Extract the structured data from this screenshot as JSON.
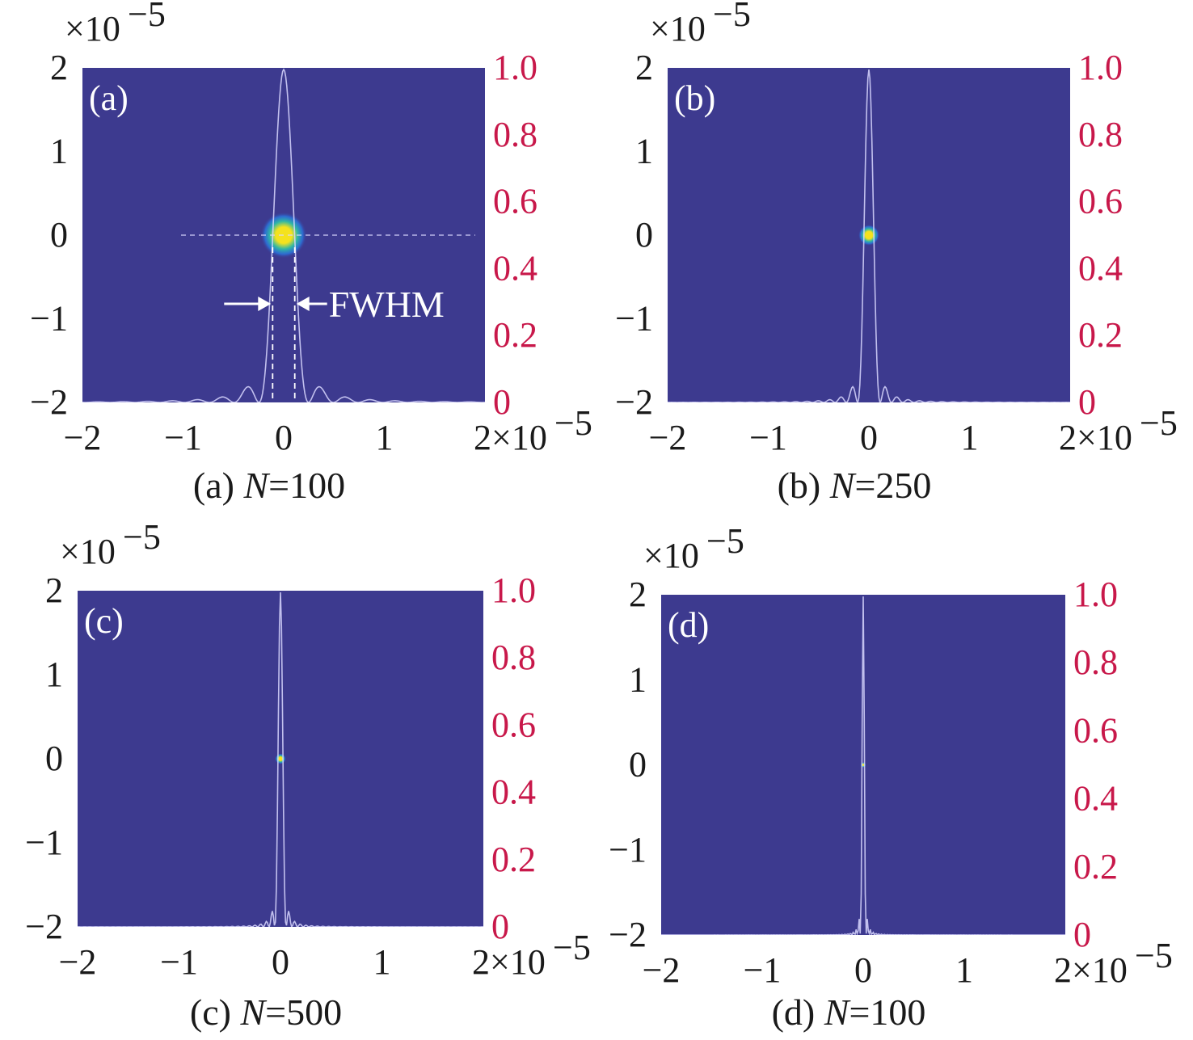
{
  "colors": {
    "background": "#3d3a8f",
    "profile_line": "#d9d8ff",
    "right_axis": "#c8184a",
    "spot_core": "#f4e21e",
    "spot_mid": "#2fb7a6",
    "spot_outer": "#2c6fd8"
  },
  "chart_data": [
    {
      "type": "heatmap",
      "panel_label": "(a)",
      "caption_prefix": "(a) ",
      "caption_var": "N",
      "caption_value": "=100",
      "N": 100,
      "x_ticks": [
        "−2",
        "−1",
        "0",
        "1",
        "2"
      ],
      "y_ticks": [
        "−2",
        "−1",
        "0",
        "1",
        "2"
      ],
      "x_exponent": "×10",
      "x_exponent_power": "−5",
      "y_exponent": "×10",
      "y_exponent_power": "−5",
      "xlim": [
        -2e-05,
        2e-05
      ],
      "ylim": [
        -2e-05,
        2e-05
      ],
      "right_ticks": [
        "0",
        "0.2",
        "0.4",
        "0.6",
        "0.8",
        "1.0"
      ],
      "right_lim": [
        0,
        1.0
      ],
      "spot_center": [
        0,
        0
      ],
      "fwhm": 2.2e-06,
      "show_crosshair": true,
      "annotation": "FWHM"
    },
    {
      "type": "heatmap",
      "panel_label": "(b)",
      "caption_prefix": "(b) ",
      "caption_var": "N",
      "caption_value": "=250",
      "N": 250,
      "x_ticks": [
        "−2",
        "−1",
        "0",
        "1",
        "2"
      ],
      "y_ticks": [
        "−2",
        "−1",
        "0",
        "1",
        "2"
      ],
      "x_exponent": "×10",
      "x_exponent_power": "−5",
      "y_exponent": "×10",
      "y_exponent_power": "−5",
      "xlim": [
        -2e-05,
        2e-05
      ],
      "ylim": [
        -2e-05,
        2e-05
      ],
      "right_ticks": [
        "0",
        "0.2",
        "0.4",
        "0.6",
        "0.8",
        "1.0"
      ],
      "right_lim": [
        0,
        1.0
      ],
      "spot_center": [
        0,
        0
      ],
      "fwhm": 1e-06,
      "show_crosshair": false,
      "annotation": ""
    },
    {
      "type": "heatmap",
      "panel_label": "(c)",
      "caption_prefix": "(c) ",
      "caption_var": "N",
      "caption_value": "=500",
      "N": 500,
      "x_ticks": [
        "−2",
        "−1",
        "0",
        "1",
        "2"
      ],
      "y_ticks": [
        "−2",
        "−1",
        "0",
        "1",
        "2"
      ],
      "x_exponent": "×10",
      "x_exponent_power": "−5",
      "y_exponent": "×10",
      "y_exponent_power": "−5",
      "xlim": [
        -2e-05,
        2e-05
      ],
      "ylim": [
        -2e-05,
        2e-05
      ],
      "right_ticks": [
        "0",
        "0.2",
        "0.4",
        "0.6",
        "0.8",
        "1.0"
      ],
      "right_lim": [
        0,
        1.0
      ],
      "spot_center": [
        0,
        0
      ],
      "fwhm": 5e-07,
      "show_crosshair": false,
      "annotation": ""
    },
    {
      "type": "heatmap",
      "panel_label": "(d)",
      "caption_prefix": "(d) ",
      "caption_var": "N",
      "caption_value": "=100",
      "N": 100,
      "x_ticks": [
        "−2",
        "−1",
        "0",
        "1",
        "2"
      ],
      "y_ticks": [
        "−2",
        "−1",
        "0",
        "1",
        "2"
      ],
      "x_exponent": "×10",
      "x_exponent_power": "−5",
      "y_exponent": "×10",
      "y_exponent_power": "−5",
      "xlim": [
        -2e-05,
        2e-05
      ],
      "ylim": [
        -2e-05,
        2e-05
      ],
      "right_ticks": [
        "0",
        "0.2",
        "0.4",
        "0.6",
        "0.8",
        "1.0"
      ],
      "right_lim": [
        0,
        1.0
      ],
      "spot_center": [
        0,
        0
      ],
      "fwhm": 2.5e-07,
      "show_crosshair": false,
      "annotation": ""
    }
  ]
}
